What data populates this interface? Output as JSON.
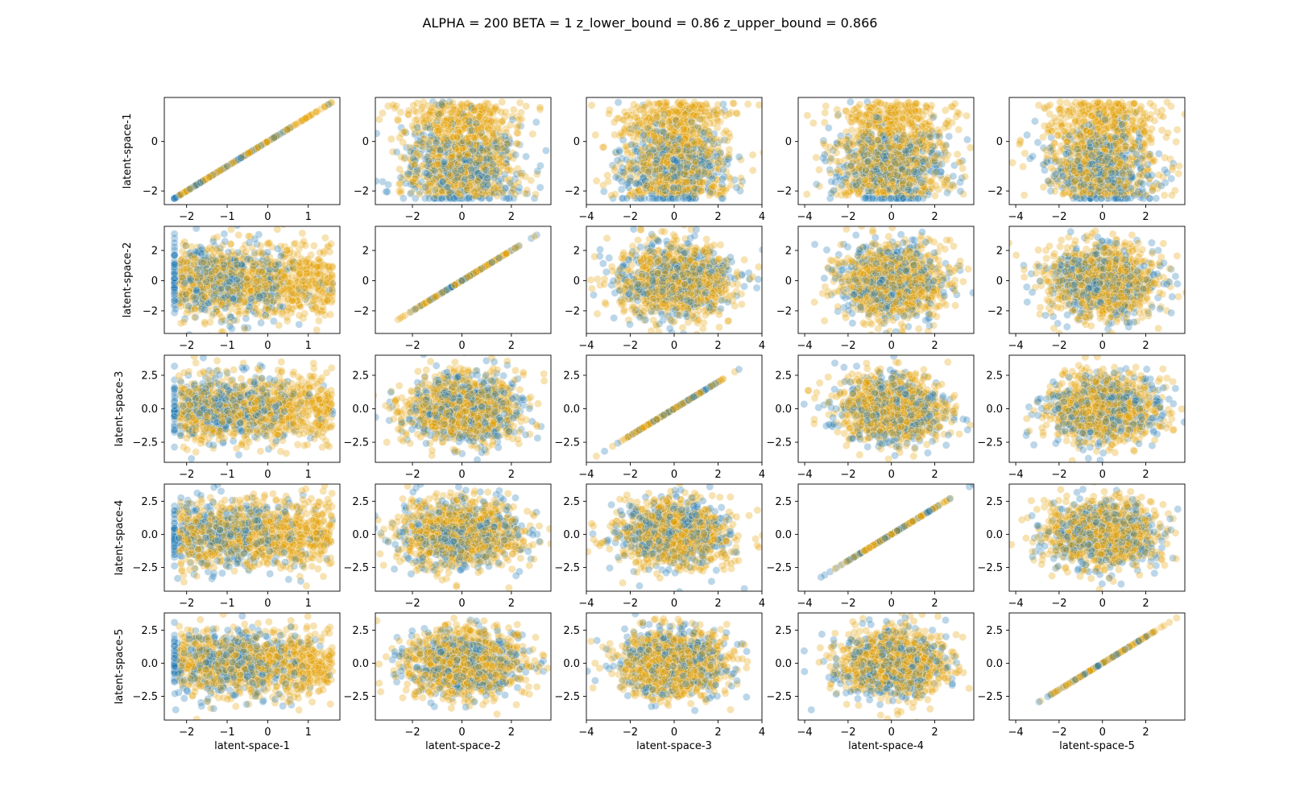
{
  "figure": {
    "title": "ALPHA = 200  BETA = 1  z_lower_bound = 0.86  z_upper_bound = 0.866"
  },
  "colors": {
    "series_0": "#1f77b4",
    "series_1": "#e69f00"
  },
  "chart_data": {
    "type": "scatter",
    "layout": "pairplot-5x5",
    "title": "ALPHA = 200  BETA = 1  z_lower_bound = 0.86  z_upper_bound = 0.866",
    "variables": [
      {
        "name": "latent-space-1",
        "range": [
          -2.55,
          1.78
        ],
        "yticks": [
          -2,
          0
        ],
        "yticklabels": [
          "−2",
          "0"
        ],
        "xticks": [
          -2,
          -1,
          0,
          1
        ],
        "xticklabels": [
          "−2",
          "−1",
          "0",
          "1"
        ],
        "ydecimals": 0,
        "xdecimals": 0
      },
      {
        "name": "latent-space-2",
        "range": [
          -3.5,
          3.6
        ],
        "yticks": [
          -2,
          0,
          2
        ],
        "yticklabels": [
          "−2",
          "0",
          "2"
        ],
        "xticks": [
          -2,
          0,
          2
        ],
        "xticklabels": [
          "−2",
          "0",
          "2"
        ]
      },
      {
        "name": "latent-space-3",
        "range": [
          -4.0,
          4.0
        ],
        "yticks": [
          -2.5,
          0.0,
          2.5
        ],
        "yticklabels": [
          "−2.5",
          "0.0",
          "2.5"
        ],
        "xticks": [
          -4,
          -2,
          0,
          2,
          4
        ],
        "xticklabels": [
          "−4",
          "−2",
          "0",
          "2",
          "4"
        ]
      },
      {
        "name": "latent-space-4",
        "range": [
          -4.3,
          3.8
        ],
        "yticks": [
          -2.5,
          0.0,
          2.5
        ],
        "yticklabels": [
          "−2.5",
          "0.0",
          "2.5"
        ],
        "xticks": [
          -4,
          -2,
          0,
          2
        ],
        "xticklabels": [
          "−4",
          "−2",
          "0",
          "2"
        ]
      },
      {
        "name": "latent-space-5",
        "range": [
          -4.3,
          3.8
        ],
        "yticks": [
          -2.5,
          0.0,
          2.5
        ],
        "yticklabels": [
          "−2.5",
          "0.0",
          "2.5"
        ],
        "xticks": [
          -4,
          -2,
          0,
          2
        ],
        "xticklabels": [
          "−4",
          "−2",
          "0",
          "2"
        ]
      }
    ],
    "series": [
      {
        "color": "#1f77b4",
        "points_per_panel": 450,
        "alpha": 0.3
      },
      {
        "color": "#e69f00",
        "points_per_panel": 900,
        "alpha": 0.3
      }
    ],
    "diagonal": "identity-line",
    "grid": false,
    "legend": "none"
  }
}
